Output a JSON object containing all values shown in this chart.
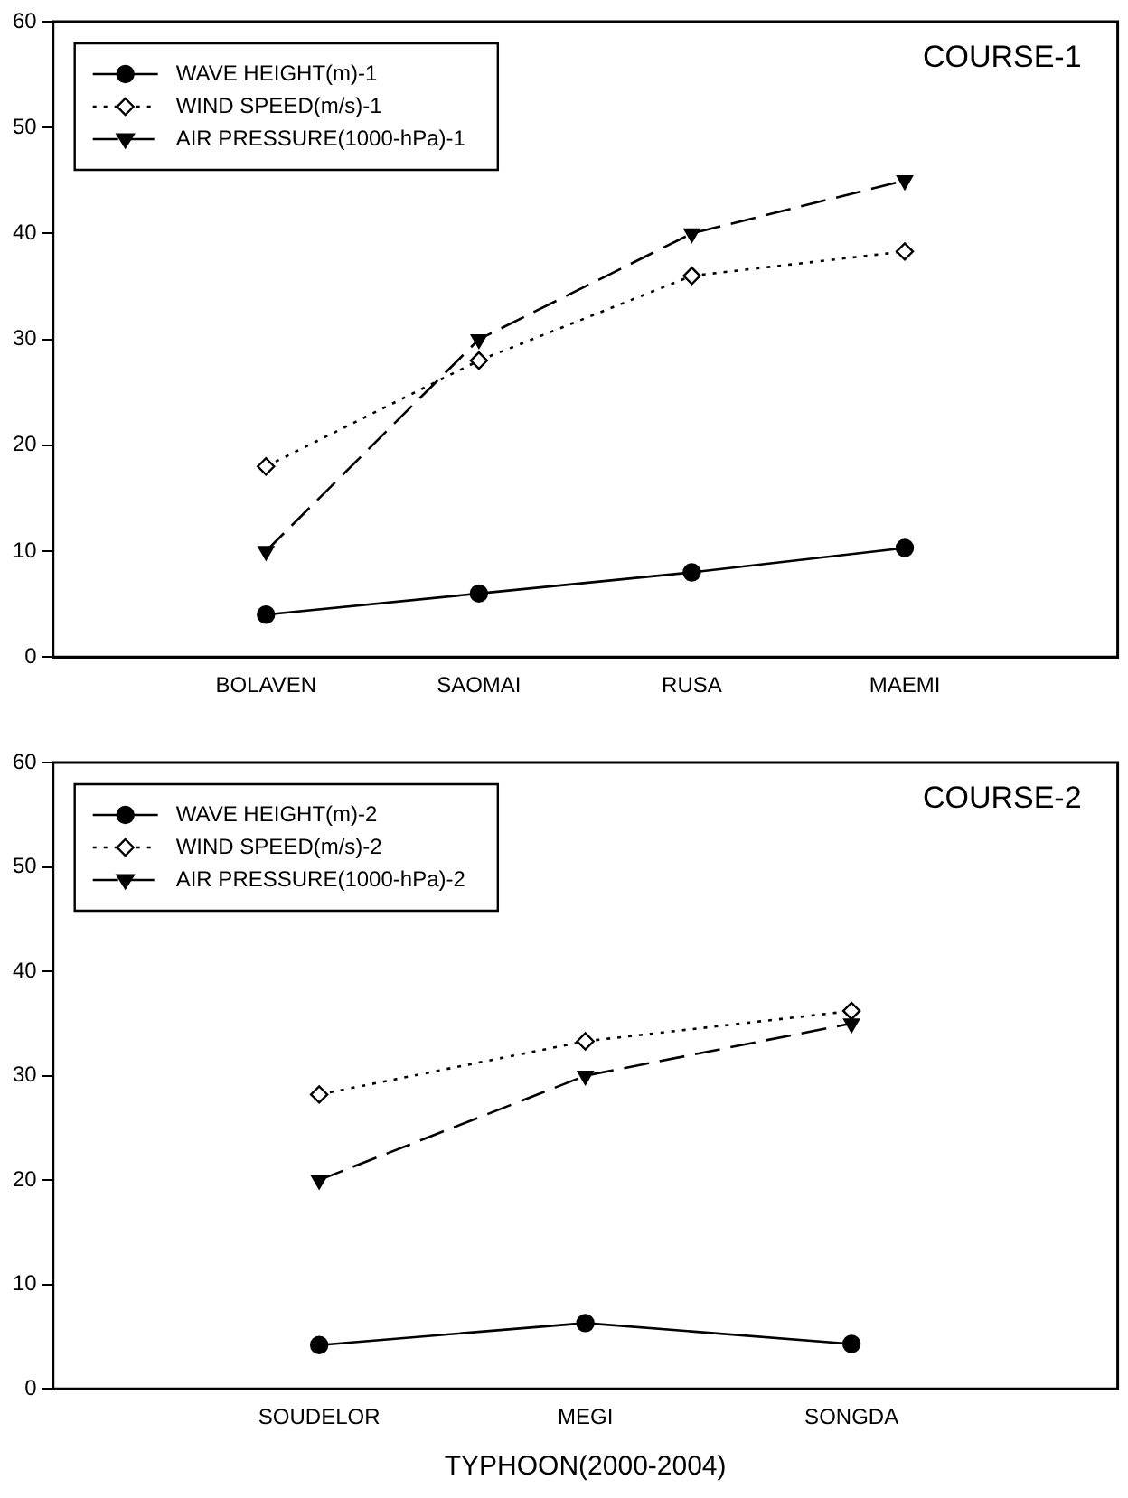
{
  "chart_data": [
    {
      "type": "line",
      "title": "COURSE-1",
      "categories": [
        "BOLAVEN",
        "SAOMAI",
        "RUSA",
        "MAEMI"
      ],
      "ylim": [
        0,
        60
      ],
      "yticks": [
        0,
        10,
        20,
        30,
        40,
        50,
        60
      ],
      "grid": false,
      "legend": "top left",
      "series": [
        {
          "name": "WAVE HEIGHT(m)-1",
          "color": "#000000",
          "marker": "circle",
          "line_style": "solid",
          "values": [
            4,
            6,
            8,
            10.3
          ]
        },
        {
          "name": "WIND SPEED(m/s)-1",
          "color": "#000000",
          "marker": "diamond",
          "line_style": "dotted",
          "values": [
            18,
            28,
            36,
            38.3
          ]
        },
        {
          "name": "AIR PRESSURE(1000-hPa)-1",
          "color": "#000000",
          "marker": "triangle",
          "line_style": "dashed",
          "values": [
            10,
            30,
            40,
            45
          ]
        }
      ]
    },
    {
      "type": "line",
      "title": "COURSE-2",
      "xlabel": "TYPHOON(2000-2004)",
      "categories": [
        "SOUDELOR",
        "MEGI",
        "SONGDA"
      ],
      "ylim": [
        0,
        60
      ],
      "yticks": [
        0,
        10,
        20,
        30,
        40,
        50,
        60
      ],
      "grid": false,
      "legend": "top left",
      "series": [
        {
          "name": "WAVE HEIGHT(m)-2",
          "color": "#000000",
          "marker": "circle",
          "line_style": "solid",
          "values": [
            4.2,
            6.3,
            4.3
          ]
        },
        {
          "name": "WIND SPEED(m/s)-2",
          "color": "#000000",
          "marker": "diamond",
          "line_style": "dotted",
          "values": [
            28.2,
            33.3,
            36.2
          ]
        },
        {
          "name": "AIR PRESSURE(1000-hPa)-2",
          "color": "#000000",
          "marker": "triangle",
          "line_style": "dashed",
          "values": [
            20,
            30,
            35
          ]
        }
      ]
    }
  ]
}
